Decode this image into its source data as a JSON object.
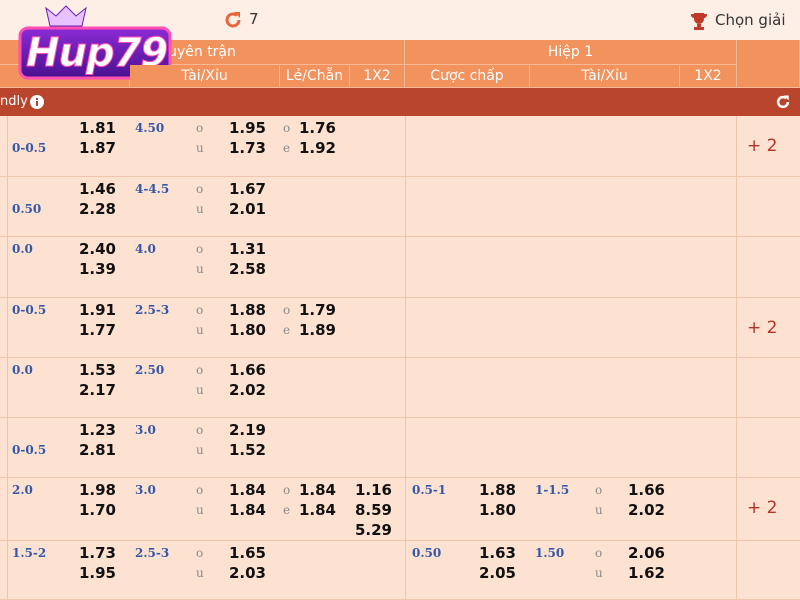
{
  "topbar": {
    "refresh_count": "7",
    "select_league": "Chọn giải"
  },
  "logo": "Hup79",
  "header": {
    "full_time": "uyên trận",
    "first_half": "Hiệp 1",
    "columns": [
      "Tài/Xỉu",
      "Lẻ/Chẵn",
      "1X2",
      "Cược chấp",
      "Tài/Xỉu",
      "1X2"
    ]
  },
  "league": "ndly",
  "labels": {
    "over_under": [
      "o",
      "u"
    ],
    "odd_even": [
      "o",
      "e"
    ]
  },
  "rows": [
    {
      "hcap": [
        null,
        "0-0.5"
      ],
      "hcap_odds": [
        "1.81",
        "1.87"
      ],
      "ou_line": "4.50",
      "ou_odds": [
        "1.95",
        "1.73"
      ],
      "oe_odds": [
        "1.76",
        "1.92"
      ],
      "more": "+ 2"
    },
    {
      "hcap": [
        null,
        "0.50"
      ],
      "hcap_odds": [
        "1.46",
        "2.28"
      ],
      "ou_line": "4-4.5",
      "ou_odds": [
        "1.67",
        "2.01"
      ]
    },
    {
      "hcap": [
        "0.0",
        null
      ],
      "hcap_odds": [
        "2.40",
        "1.39"
      ],
      "ou_line": "4.0",
      "ou_odds": [
        "1.31",
        "2.58"
      ]
    },
    {
      "hcap": [
        "0-0.5",
        null
      ],
      "hcap_odds": [
        "1.91",
        "1.77"
      ],
      "ou_line": "2.5-3",
      "ou_odds": [
        "1.88",
        "1.80"
      ],
      "oe_odds": [
        "1.79",
        "1.89"
      ],
      "more": "+ 2"
    },
    {
      "hcap": [
        "0.0",
        null
      ],
      "hcap_odds": [
        "1.53",
        "2.17"
      ],
      "ou_line": "2.50",
      "ou_odds": [
        "1.66",
        "2.02"
      ]
    },
    {
      "hcap": [
        null,
        "0-0.5"
      ],
      "hcap_odds": [
        "1.23",
        "2.81"
      ],
      "ou_line": "3.0",
      "ou_odds": [
        "2.19",
        "1.52"
      ]
    },
    {
      "hcap": [
        "2.0",
        null
      ],
      "hcap_odds": [
        "1.98",
        "1.70"
      ],
      "ou_line": "3.0",
      "ou_odds": [
        "1.84",
        "1.84"
      ],
      "oe_odds": [
        "1.84",
        "1.84"
      ],
      "x12": [
        "1.16",
        "8.59",
        "5.29"
      ],
      "h1_hcap": "0.5-1",
      "h1_hcap_odds": [
        "1.88",
        "1.80"
      ],
      "h1_ou_line": "1-1.5",
      "h1_ou_odds": [
        "1.66",
        "2.02"
      ],
      "more": "+ 2"
    },
    {
      "hcap": [
        "1.5-2",
        null
      ],
      "hcap_odds": [
        "1.73",
        "1.95"
      ],
      "ou_line": "2.5-3",
      "ou_odds": [
        "1.65",
        "2.03"
      ],
      "h1_hcap": "0.50",
      "h1_hcap_odds": [
        "1.63",
        "2.05"
      ],
      "h1_ou_line": "1.50",
      "h1_ou_odds": [
        "2.06",
        "1.62"
      ]
    }
  ]
}
